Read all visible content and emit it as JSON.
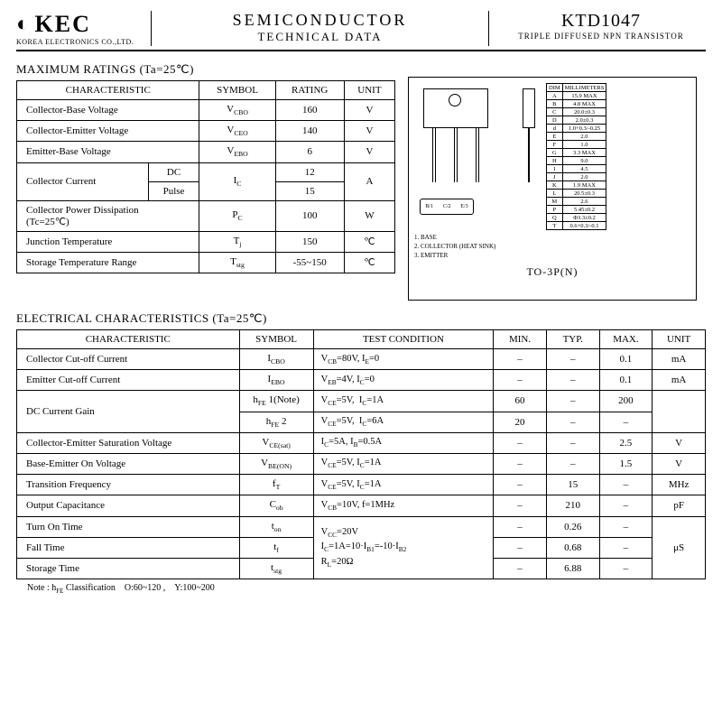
{
  "header": {
    "logo_symbol": "◐",
    "logo_text": "KEC",
    "company": "KOREA ELECTRONICS CO.,LTD.",
    "title1": "SEMICONDUCTOR",
    "title2": "TECHNICAL DATA",
    "part_number": "KTD1047",
    "description": "TRIPLE DIFFUSED NPN TRANSISTOR"
  },
  "ratings": {
    "title": "MAXIMUM RATINGS (Ta=25℃)",
    "headers": [
      "CHARACTERISTIC",
      "SYMBOL",
      "RATING",
      "UNIT"
    ],
    "rows": [
      {
        "char": "Collector-Base Voltage",
        "sym": "V",
        "sub": "CBO",
        "rating": "160",
        "unit": "V"
      },
      {
        "char": "Collector-Emitter Voltage",
        "sym": "V",
        "sub": "CEO",
        "rating": "140",
        "unit": "V"
      },
      {
        "char": "Emitter-Base Voltage",
        "sym": "V",
        "sub": "EBO",
        "rating": "6",
        "unit": "V"
      }
    ],
    "collector_current": {
      "label": "Collector Current",
      "dc": "DC",
      "pulse": "Pulse",
      "sym": "I",
      "sub": "C",
      "dc_val": "12",
      "pulse_val": "15",
      "unit": "A"
    },
    "power": {
      "char": "Collector Power Dissipation\n(Tc=25℃)",
      "sym": "P",
      "sub": "C",
      "rating": "100",
      "unit": "W"
    },
    "junction": {
      "char": "Junction Temperature",
      "sym": "T",
      "sub": "j",
      "rating": "150",
      "unit": "℃"
    },
    "storage": {
      "char": "Storage Temperature Range",
      "sym": "T",
      "sub": "stg",
      "rating": "-55~150",
      "unit": "℃"
    }
  },
  "package": {
    "dim_header": [
      "DIM",
      "MILLIMETERS"
    ],
    "dims": [
      [
        "A",
        "15.9 MAX"
      ],
      [
        "B",
        "4.8 MAX"
      ],
      [
        "C",
        "20.0±0.3"
      ],
      [
        "D",
        "2.0±0.3"
      ],
      [
        "d",
        "1.0+0.3/-0.25"
      ],
      [
        "E",
        "2.0"
      ],
      [
        "F",
        "1.0"
      ],
      [
        "G",
        "3.3 MAX"
      ],
      [
        "H",
        "9.0"
      ],
      [
        "I",
        "4.5"
      ],
      [
        "J",
        "2.0"
      ],
      [
        "K",
        "1.9 MAX"
      ],
      [
        "L",
        "20.5±0.3"
      ],
      [
        "M",
        "2.6"
      ],
      [
        "P",
        "5.45±0.2"
      ],
      [
        "Q",
        "Φ3.3±0.2"
      ],
      [
        "T",
        "0.6+0.3/-0.1"
      ]
    ],
    "pins": [
      "1. BASE",
      "2. COLLECTOR (HEAT SINK)",
      "3. EMITTER"
    ],
    "name": "TO-3P(N)",
    "bottom_labels": [
      "B/1",
      "C/2",
      "E/3"
    ]
  },
  "elec": {
    "title": "ELECTRICAL CHARACTERISTICS (Ta=25℃)",
    "headers": [
      "CHARACTERISTIC",
      "SYMBOL",
      "TEST CONDITION",
      "MIN.",
      "TYP.",
      "MAX.",
      "UNIT"
    ],
    "rows": [
      {
        "char": "Collector Cut-off Current",
        "sym": "I",
        "sub": "CBO",
        "cond": "V_CB=80V,  I_E=0",
        "min": "–",
        "typ": "–",
        "max": "0.1",
        "unit": "mA"
      },
      {
        "char": "Emitter Cut-off Current",
        "sym": "I",
        "sub": "EBO",
        "cond": "V_EB=4V,  I_C=0",
        "min": "–",
        "typ": "–",
        "max": "0.1",
        "unit": "mA"
      }
    ],
    "dc_gain": {
      "char": "DC Current Gain",
      "r1": {
        "sym": "h_FE 1(Note)",
        "cond": "V_CE=5V,  I_C=1A",
        "min": "60",
        "typ": "–",
        "max": "200"
      },
      "r2": {
        "sym": "h_FE 2",
        "cond": "V_CE=5V,  I_C=6A",
        "min": "20",
        "typ": "–",
        "max": "–"
      }
    },
    "rows2": [
      {
        "char": "Collector-Emitter Saturation Voltage",
        "sym": "V",
        "sub": "CE(sat)",
        "cond": "I_C=5A,  I_B=0.5A",
        "min": "–",
        "typ": "–",
        "max": "2.5",
        "unit": "V"
      },
      {
        "char": "Base-Emitter On Voltage",
        "sym": "V",
        "sub": "BE(ON)",
        "cond": "V_CE=5V,  I_C=1A",
        "min": "–",
        "typ": "–",
        "max": "1.5",
        "unit": "V"
      },
      {
        "char": "Transition Frequency",
        "sym": "f",
        "sub": "T",
        "cond": "V_CE=5V,  I_C=1A",
        "min": "–",
        "typ": "15",
        "max": "–",
        "unit": "MHz"
      },
      {
        "char": "Output Capacitance",
        "sym": "C",
        "sub": "ob",
        "cond": "V_CB=10V,  f=1MHz",
        "min": "–",
        "typ": "210",
        "max": "–",
        "unit": "pF"
      }
    ],
    "timing": {
      "cond_lines": [
        "V_CC=20V",
        "I_C=1A=10·I_B1=-10·I_B2",
        "R_L=20Ω"
      ],
      "rows": [
        {
          "char": "Turn On Time",
          "sym": "t",
          "sub": "on",
          "min": "–",
          "typ": "0.26",
          "max": "–"
        },
        {
          "char": "Fall Time",
          "sym": "t",
          "sub": "f",
          "min": "–",
          "typ": "0.68",
          "max": "–"
        },
        {
          "char": "Storage Time",
          "sym": "t",
          "sub": "stg",
          "min": "–",
          "typ": "6.88",
          "max": "–"
        }
      ],
      "unit": "μS"
    }
  },
  "note": "Note : h_FE Classification    O:60~120 ,    Y:100~200"
}
